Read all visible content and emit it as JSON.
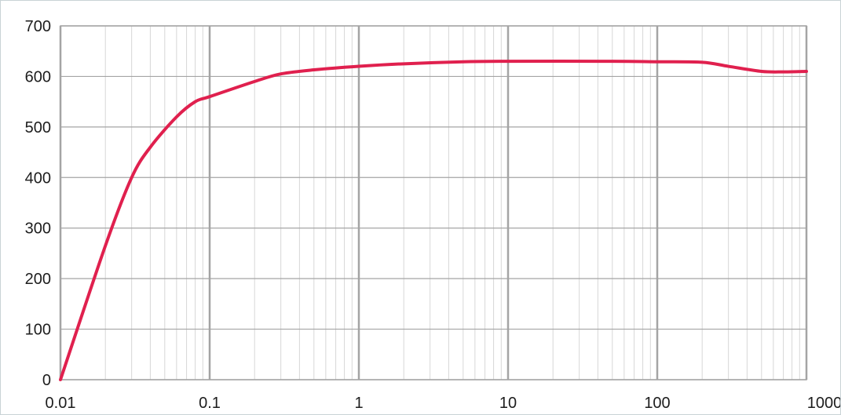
{
  "chart_data": {
    "type": "line",
    "title": "",
    "xlabel": "",
    "ylabel": "",
    "x_scale": "log",
    "xlim": [
      0.01,
      1000
    ],
    "ylim": [
      0,
      700
    ],
    "grid": true,
    "x_ticks": [
      0.01,
      0.1,
      1,
      10,
      100,
      1000
    ],
    "x_tick_labels": [
      "0.01",
      "0.1",
      "1",
      "10",
      "100",
      "1000"
    ],
    "y_ticks": [
      0,
      100,
      200,
      300,
      400,
      500,
      600,
      700
    ],
    "y_tick_labels": [
      "0",
      "100",
      "200",
      "300",
      "400",
      "500",
      "600",
      "700"
    ],
    "series": [
      {
        "color": "#e0204e",
        "x": [
          0.01,
          0.02,
          0.03,
          0.04,
          0.06,
          0.08,
          0.1,
          0.2,
          0.3,
          0.5,
          1,
          2,
          5,
          10,
          50,
          100,
          200,
          300,
          500,
          700,
          1000
        ],
        "y": [
          0,
          265,
          400,
          460,
          520,
          550,
          560,
          590,
          605,
          613,
          620,
          625,
          629,
          630,
          630,
          629,
          628,
          620,
          610,
          609,
          610
        ]
      }
    ]
  },
  "colors": {
    "minor_grid": "#d7d7d7",
    "major_grid": "#a4a4a4",
    "axis": "#a4a4a4",
    "line": "#e0204e"
  }
}
